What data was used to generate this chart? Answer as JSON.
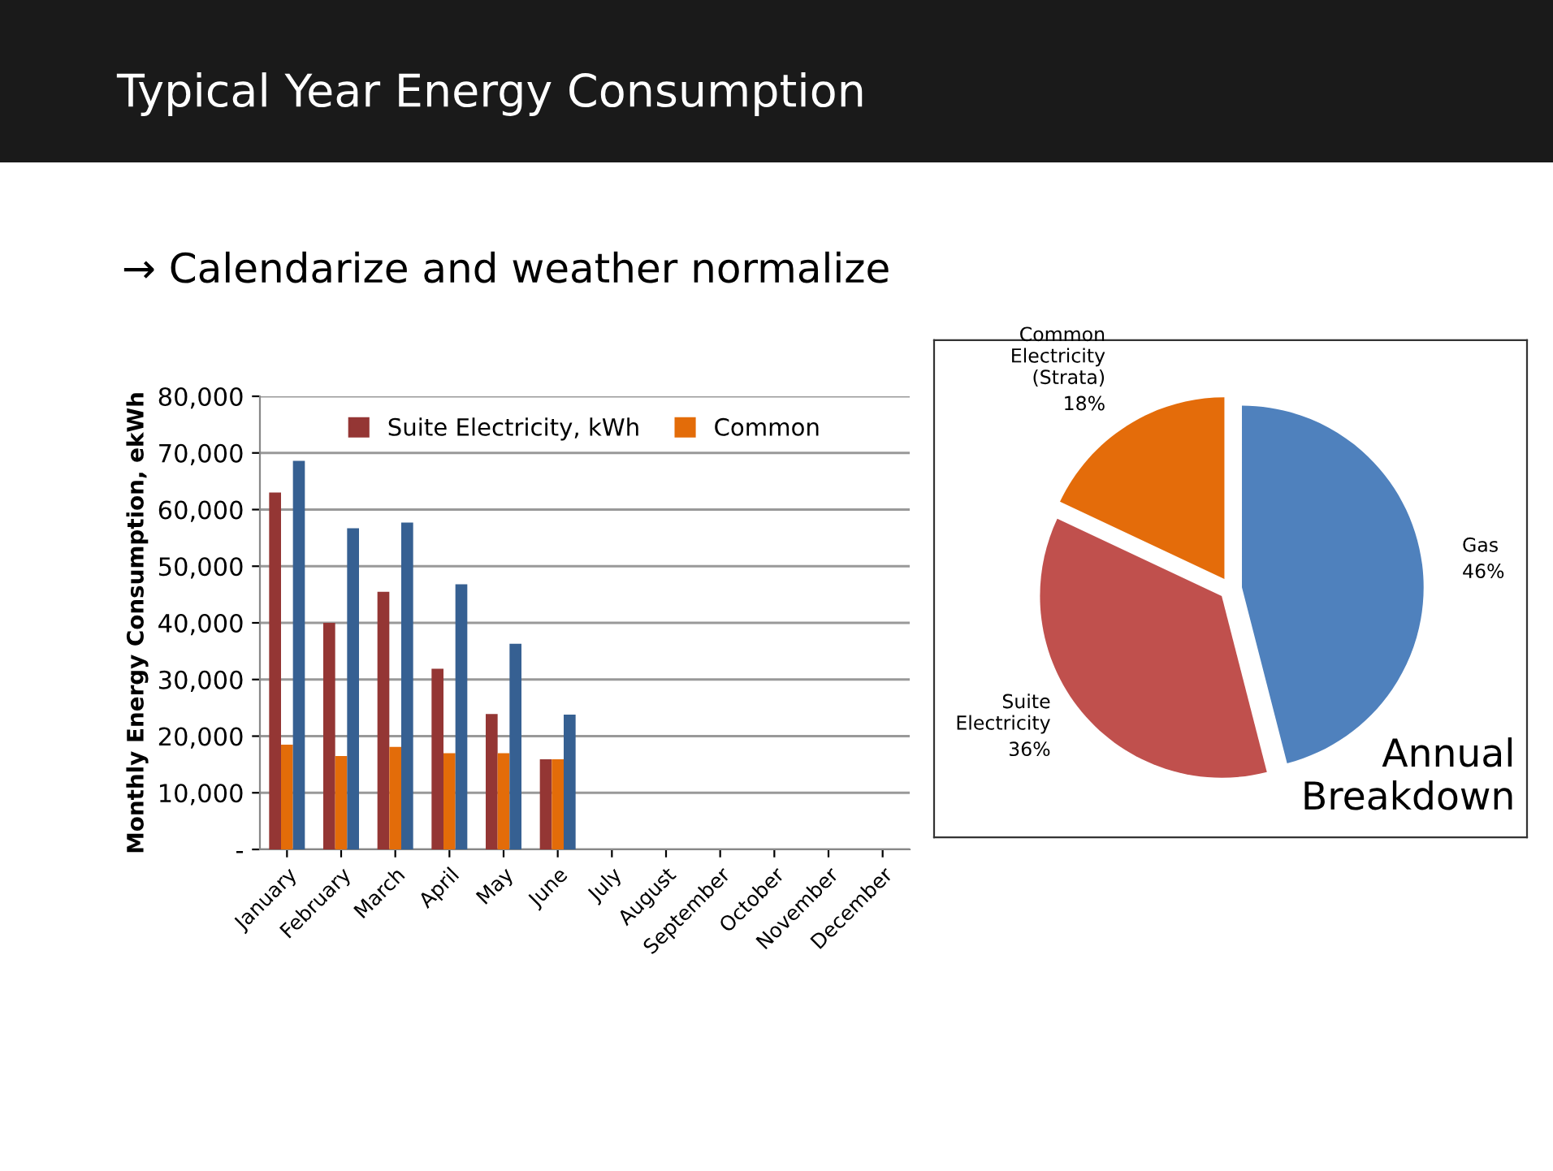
{
  "chart_data": [
    {
      "type": "bar",
      "title": "Typical Year Energy Consumption",
      "subtitle": "→ Calendarize and weather normalize",
      "ylabel": "Monthly Energy Consumption, ekWh",
      "categories": [
        "January",
        "February",
        "March",
        "April",
        "May",
        "June",
        "July",
        "August",
        "September",
        "October",
        "November",
        "December"
      ],
      "series": [
        {
          "name": "Suite Electricity, kWh",
          "color": "#943634",
          "values": [
            63000,
            40000,
            45500,
            31900,
            23900,
            15900,
            null,
            null,
            null,
            null,
            null,
            null
          ]
        },
        {
          "name": "Common",
          "color": "#e36c09",
          "values": [
            18500,
            16500,
            18100,
            17000,
            17000,
            15900,
            null,
            null,
            null,
            null,
            null,
            null
          ]
        },
        {
          "color": "#366092",
          "values": [
            68600,
            56700,
            57700,
            46800,
            36300,
            23800,
            null,
            null,
            null,
            null,
            null,
            null
          ]
        }
      ],
      "ylim": [
        0,
        80000
      ],
      "yticks": [
        {
          "value": 0,
          "label": "-"
        },
        {
          "value": 10000,
          "label": "10,000"
        },
        {
          "value": 20000,
          "label": "20,000"
        },
        {
          "value": 30000,
          "label": "30,000"
        },
        {
          "value": 40000,
          "label": "40,000"
        },
        {
          "value": 50000,
          "label": "50,000"
        },
        {
          "value": 60000,
          "label": "60,000"
        },
        {
          "value": 70000,
          "label": "70,000"
        },
        {
          "value": 80000,
          "label": "80,000"
        }
      ],
      "grid": "y",
      "legend": "top"
    },
    {
      "type": "pie",
      "title": "Annual Breakdown",
      "categories": [
        "Gas",
        "Suite Electricity",
        "Common Electricity (Strata)"
      ],
      "values": [
        46,
        36,
        18
      ],
      "colors": [
        "#4f81bd",
        "#c0504d",
        "#e46c0a"
      ],
      "value_labels": [
        "46%",
        "36%",
        "18%"
      ]
    }
  ]
}
